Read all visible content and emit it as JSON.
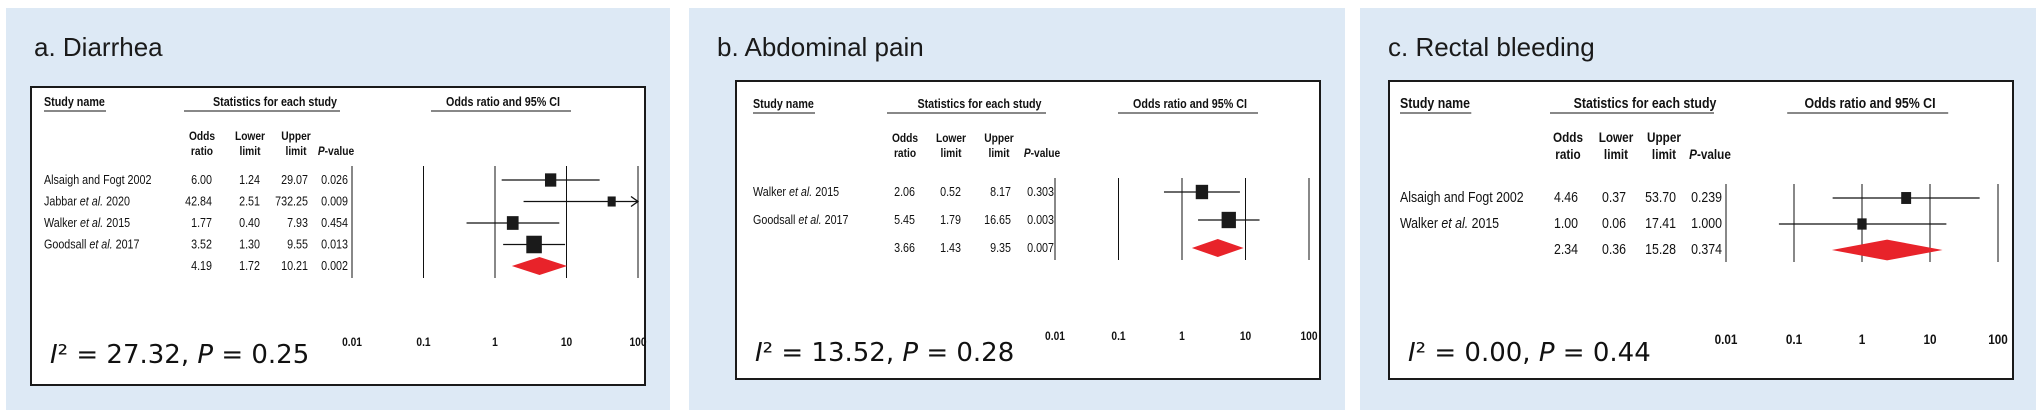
{
  "panels": [
    {
      "title": "a. Diarrhea",
      "stat_text": "I² = 27.32, P = 0.25"
    },
    {
      "title": "b. Abdominal pain",
      "stat_text": "I² = 13.52, P = 0.28"
    },
    {
      "title": "c. Rectal bleeding",
      "stat_text": "I² = 0.00, P = 0.44"
    }
  ],
  "headers": {
    "study_name": "Study name",
    "stats": "Statistics for each study",
    "odds_ci": "Odds ratio and 95% CI",
    "odds_1": "Odds",
    "odds_2": "ratio",
    "lower_1": "Lower",
    "lower_2": "limit",
    "upper_1": "Upper",
    "upper_2": "limit",
    "pvalue": "P-value"
  },
  "colors": {
    "square": "#1a1a1a",
    "diamond": "#e8232a",
    "panel_bg": "#dde9f5"
  },
  "chart_data": [
    {
      "type": "forest",
      "title": "a. Diarrhea",
      "x_scale": "log",
      "xticks": [
        "0.01",
        "0.1",
        "1",
        "10",
        "100"
      ],
      "xlim": [
        0.01,
        100
      ],
      "studies": [
        {
          "name": "Alsaigh and Fogt 2002",
          "or": "6.00",
          "lower": "1.24",
          "upper": "29.07",
          "p": "0.026"
        },
        {
          "name": "Jabbar et al. 2020",
          "or": "42.84",
          "lower": "2.51",
          "upper": "732.25",
          "p": "0.009"
        },
        {
          "name": "Walker et al. 2015",
          "or": "1.77",
          "lower": "0.40",
          "upper": "7.93",
          "p": "0.454"
        },
        {
          "name": "Goodsall et al. 2017",
          "or": "3.52",
          "lower": "1.30",
          "upper": "9.55",
          "p": "0.013"
        }
      ],
      "pooled": {
        "or": "4.19",
        "lower": "1.72",
        "upper": "10.21",
        "p": "0.002"
      },
      "heterogeneity": {
        "I2": "27.32",
        "P": "0.25"
      }
    },
    {
      "type": "forest",
      "title": "b. Abdominal pain",
      "x_scale": "log",
      "xticks": [
        "0.01",
        "0.1",
        "1",
        "10",
        "100"
      ],
      "xlim": [
        0.01,
        100
      ],
      "studies": [
        {
          "name": "Walker et al. 2015",
          "or": "2.06",
          "lower": "0.52",
          "upper": "8.17",
          "p": "0.303"
        },
        {
          "name": "Goodsall et al. 2017",
          "or": "5.45",
          "lower": "1.79",
          "upper": "16.65",
          "p": "0.003"
        }
      ],
      "pooled": {
        "or": "3.66",
        "lower": "1.43",
        "upper": "9.35",
        "p": "0.007"
      },
      "heterogeneity": {
        "I2": "13.52",
        "P": "0.28"
      }
    },
    {
      "type": "forest",
      "title": "c. Rectal bleeding",
      "x_scale": "log",
      "xticks": [
        "0.01",
        "0.1",
        "1",
        "10",
        "100"
      ],
      "xlim": [
        0.01,
        100
      ],
      "studies": [
        {
          "name": "Alsaigh and Fogt 2002",
          "or": "4.46",
          "lower": "0.37",
          "upper": "53.70",
          "p": "0.239"
        },
        {
          "name": "Walker et al. 2015",
          "or": "1.00",
          "lower": "0.06",
          "upper": "17.41",
          "p": "1.000"
        }
      ],
      "pooled": {
        "or": "2.34",
        "lower": "0.36",
        "upper": "15.28",
        "p": "0.374"
      },
      "heterogeneity": {
        "I2": "0.00",
        "P": "0.44"
      }
    }
  ]
}
